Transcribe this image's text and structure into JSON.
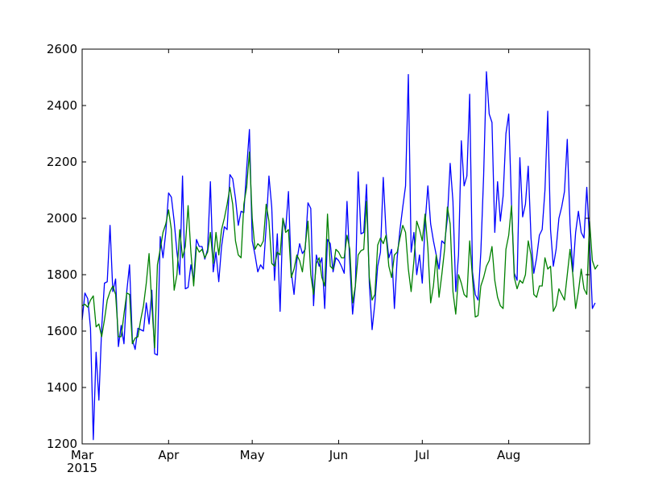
{
  "chart_data": {
    "type": "line",
    "title": "",
    "xlabel": "",
    "ylabel": "",
    "grid": false,
    "legend": "none",
    "ylim": [
      1200,
      2600
    ],
    "xlim": [
      0,
      182
    ],
    "x_start": "2015-03-01",
    "y_ticks": [
      "1200",
      "1400",
      "1600",
      "1800",
      "2000",
      "2200",
      "2400",
      "2600"
    ],
    "x_ticks": [
      {
        "day": 0,
        "label": "Mar",
        "sub": "2015"
      },
      {
        "day": 31,
        "label": "Apr",
        "sub": ""
      },
      {
        "day": 61,
        "label": "May",
        "sub": ""
      },
      {
        "day": 92,
        "label": "Jun",
        "sub": ""
      },
      {
        "day": 122,
        "label": "Jul",
        "sub": ""
      },
      {
        "day": 153,
        "label": "Aug",
        "sub": ""
      }
    ],
    "series": [
      {
        "color": "#0000ff",
        "values": [
          1640,
          1735,
          1715,
          1610,
          1215,
          1525,
          1355,
          1610,
          1770,
          1775,
          1975,
          1740,
          1785,
          1545,
          1620,
          1555,
          1740,
          1835,
          1570,
          1535,
          1610,
          1605,
          1600,
          1700,
          1625,
          1745,
          1520,
          1515,
          1935,
          1860,
          1950,
          2090,
          2075,
          1990,
          1880,
          1800,
          2150,
          1750,
          1755,
          1835,
          1780,
          1925,
          1900,
          1900,
          1855,
          1890,
          2130,
          1810,
          1880,
          1775,
          1900,
          1970,
          1960,
          2155,
          2140,
          2070,
          1975,
          2025,
          2020,
          2175,
          2315,
          1920,
          1870,
          1810,
          1835,
          1820,
          1970,
          2150,
          2040,
          1780,
          1945,
          1670,
          2000,
          1960,
          2095,
          1810,
          1730,
          1850,
          1910,
          1875,
          1890,
          2055,
          2035,
          1690,
          1870,
          1830,
          1860,
          1680,
          1925,
          1910,
          1810,
          1860,
          1850,
          1830,
          1805,
          2060,
          1840,
          1660,
          1760,
          2165,
          1945,
          1950,
          2120,
          1770,
          1605,
          1700,
          1830,
          1880,
          2145,
          1950,
          1860,
          1890,
          1680,
          1860,
          1960,
          2040,
          2115,
          2510,
          1880,
          1950,
          1800,
          1870,
          1770,
          1980,
          2115,
          1980,
          1920,
          1870,
          1820,
          1920,
          1910,
          2000,
          2195,
          2060,
          1740,
          1870,
          2275,
          2115,
          2150,
          2440,
          1810,
          1730,
          1710,
          1880,
          2150,
          2520,
          2370,
          2340,
          1950,
          2130,
          1990,
          2080,
          2300,
          2370,
          2050,
          1805,
          1780,
          2215,
          2005,
          2050,
          2185,
          1930,
          1805,
          1860,
          1940,
          1960,
          2100,
          2380,
          1960,
          1830,
          1890,
          2000,
          2040,
          2095,
          2280,
          1980,
          1810,
          1950,
          2025,
          1950,
          1930,
          2110,
          1920,
          1680,
          1700
        ]
      },
      {
        "color": "#008000",
        "values": [
          1690,
          1695,
          1685,
          1710,
          1725,
          1615,
          1625,
          1580,
          1640,
          1710,
          1740,
          1760,
          1730,
          1580,
          1580,
          1660,
          1735,
          1730,
          1555,
          1575,
          1580,
          1640,
          1690,
          1770,
          1875,
          1690,
          1540,
          1835,
          1890,
          1950,
          1980,
          2030,
          1960,
          1745,
          1800,
          1960,
          1860,
          1900,
          2045,
          1880,
          1760,
          1900,
          1880,
          1890,
          1860,
          1880,
          1950,
          1840,
          1950,
          1870,
          1960,
          2000,
          2050,
          2110,
          2050,
          1920,
          1870,
          1860,
          2050,
          2110,
          2235,
          2000,
          1890,
          1910,
          1900,
          1920,
          2050,
          1990,
          1840,
          1830,
          1880,
          1870,
          2000,
          1950,
          1960,
          1790,
          1820,
          1870,
          1850,
          1810,
          1900,
          1990,
          1800,
          1730,
          1840,
          1860,
          1790,
          1760,
          2015,
          1830,
          1820,
          1890,
          1880,
          1860,
          1860,
          1940,
          1890,
          1700,
          1760,
          1870,
          1885,
          1890,
          2060,
          1790,
          1710,
          1730,
          1905,
          1930,
          1910,
          1940,
          1830,
          1790,
          1870,
          1880,
          1930,
          1975,
          1950,
          1820,
          1740,
          1850,
          1990,
          1960,
          1920,
          2015,
          1895,
          1700,
          1760,
          1870,
          1720,
          1800,
          1890,
          2040,
          1980,
          1740,
          1660,
          1800,
          1770,
          1730,
          1720,
          1920,
          1790,
          1650,
          1655,
          1760,
          1790,
          1830,
          1850,
          1900,
          1780,
          1720,
          1690,
          1680,
          1890,
          1940,
          2045,
          1790,
          1750,
          1780,
          1770,
          1800,
          1920,
          1870,
          1730,
          1720,
          1760,
          1760,
          1860,
          1820,
          1830,
          1670,
          1690,
          1750,
          1730,
          1710,
          1800,
          1890,
          1800,
          1680,
          1740,
          1820,
          1750,
          1730,
          1990,
          1850,
          1820,
          1835
        ]
      }
    ]
  }
}
